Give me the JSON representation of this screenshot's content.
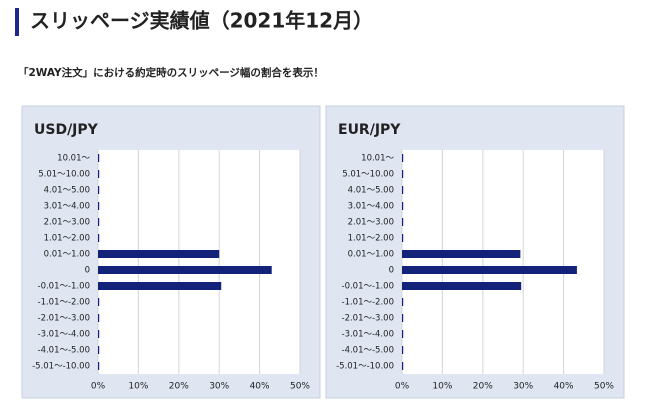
{
  "page": {
    "title": "スリッページ実績値（2021年12月）",
    "subtitle": "「2WAY注文」における約定時のスリッページ幅の割合を表示！"
  },
  "chart_data": [
    {
      "type": "hbar",
      "title": "USD/JPY",
      "color": "#14237a",
      "grid": true,
      "categories": [
        "10.01～",
        "5.01～10.00",
        "4.01～5.00",
        "3.01～4.00",
        "2.01～3.00",
        "1.01～2.00",
        "0.01～1.00",
        "0",
        "-0.01～-1.00",
        "-1.01～-2.00",
        "-2.01～-3.00",
        "-3.01～-4.00",
        "-4.01～-5.00",
        "-5.01～-10.00"
      ],
      "values": [
        0.3,
        0.3,
        0.3,
        0.3,
        0.3,
        0.3,
        30,
        43,
        30.5,
        0.3,
        0.3,
        0.3,
        0.3,
        0.3
      ],
      "xlim": [
        0,
        50
      ],
      "xticks": [
        {
          "value": 0,
          "label": "0%"
        },
        {
          "value": 10,
          "label": "10%"
        },
        {
          "value": 20,
          "label": "20%"
        },
        {
          "value": 30,
          "label": "30%"
        },
        {
          "value": 40,
          "label": "40%"
        },
        {
          "value": 50,
          "label": "50%"
        }
      ]
    },
    {
      "type": "hbar",
      "title": "EUR/JPY",
      "color": "#14237a",
      "grid": true,
      "categories": [
        "10.01～",
        "5.01～10.00",
        "4.01～5.00",
        "3.01～4.00",
        "2.01～3.00",
        "1.01～2.00",
        "0.01～1.00",
        "0",
        "-0.01～-1.00",
        "-1.01～-2.00",
        "-2.01～-3.00",
        "-3.01～-4.00",
        "-4.01～-5.00",
        "-5.01～-10.00"
      ],
      "values": [
        0.3,
        0.3,
        0.3,
        0.3,
        0.3,
        0.3,
        29.3,
        43.3,
        29.5,
        0.3,
        0.3,
        0.3,
        0.3,
        0.3
      ],
      "xlim": [
        0,
        50
      ],
      "xticks": [
        {
          "value": 0,
          "label": "0%"
        },
        {
          "value": 10,
          "label": "10%"
        },
        {
          "value": 20,
          "label": "20%"
        },
        {
          "value": 30,
          "label": "30%"
        },
        {
          "value": 40,
          "label": "40%"
        },
        {
          "value": 50,
          "label": "50%"
        }
      ]
    }
  ]
}
